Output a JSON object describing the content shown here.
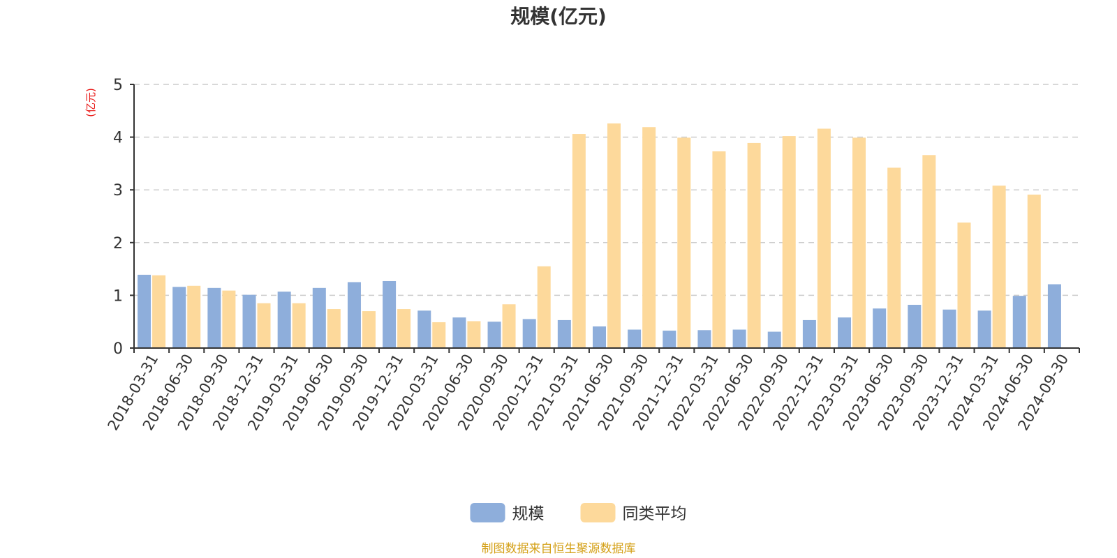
{
  "chart_data": {
    "type": "bar",
    "title": "规模(亿元)",
    "ylabel": "(亿元)",
    "ylim": [
      0,
      5
    ],
    "yticks": [
      0,
      1,
      2,
      3,
      4,
      5
    ],
    "grid": true,
    "legend_position": "bottom",
    "categories": [
      "2018-03-31",
      "2018-06-30",
      "2018-09-30",
      "2018-12-31",
      "2019-03-31",
      "2019-06-30",
      "2019-09-30",
      "2019-12-31",
      "2020-03-31",
      "2020-06-30",
      "2020-09-30",
      "2020-12-31",
      "2021-03-31",
      "2021-06-30",
      "2021-09-30",
      "2021-12-31",
      "2022-03-31",
      "2022-06-30",
      "2022-09-30",
      "2022-12-31",
      "2023-03-31",
      "2023-06-30",
      "2023-09-30",
      "2023-12-31",
      "2024-03-31",
      "2024-06-30",
      "2024-09-30"
    ],
    "series": [
      {
        "name": "规模",
        "color": "#8eaedb",
        "values": [
          1.39,
          1.16,
          1.14,
          1.01,
          1.07,
          1.14,
          1.25,
          1.27,
          0.71,
          0.58,
          0.5,
          0.55,
          0.53,
          0.41,
          0.35,
          0.33,
          0.34,
          0.35,
          0.31,
          0.53,
          0.58,
          0.75,
          0.82,
          0.73,
          0.71,
          0.99,
          1.21
        ]
      },
      {
        "name": "同类平均",
        "color": "#fdd99b",
        "values": [
          1.38,
          1.18,
          1.09,
          0.85,
          0.85,
          0.74,
          0.7,
          0.74,
          0.49,
          0.51,
          0.83,
          1.55,
          4.06,
          4.26,
          4.19,
          3.99,
          3.73,
          3.89,
          4.02,
          4.16,
          3.99,
          3.42,
          3.66,
          2.38,
          3.08,
          2.91,
          null
        ]
      }
    ]
  },
  "source_note": "制图数据来自恒生聚源数据库"
}
